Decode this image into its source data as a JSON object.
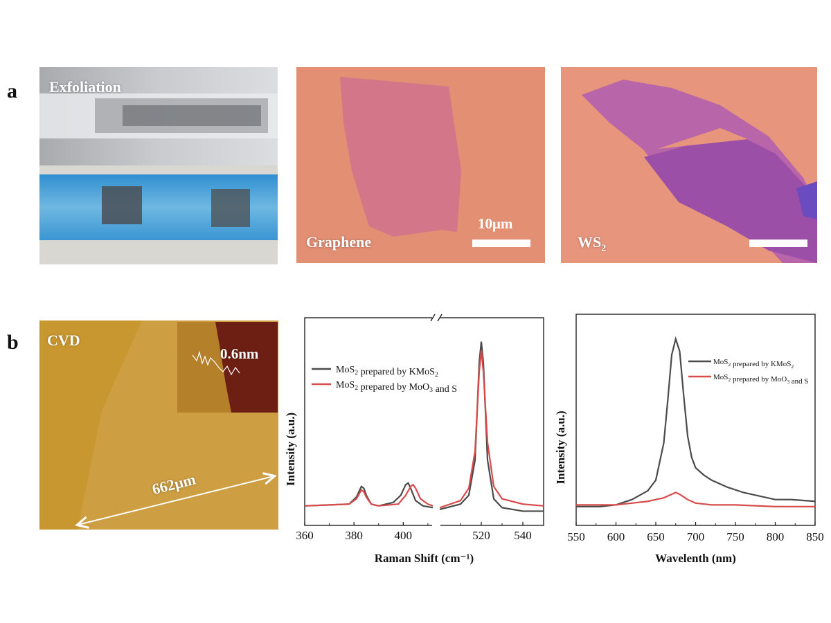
{
  "panels": {
    "a_label": "a",
    "b_label": "b",
    "exfoliation_label": "Exfoliation",
    "graphene_label": "Graphene",
    "graphene_scale": "10μm",
    "ws2_label_base": "WS",
    "ws2_label_sub": "2",
    "cvd_label": "CVD",
    "cvd_afm_height": "0.6nm",
    "cvd_length": "662μm"
  },
  "chart_data": [
    {
      "type": "line",
      "xlabel": "Raman Shift (cm⁻¹)",
      "ylabel": "Intensity (a.u.)",
      "xlim": [
        360,
        550
      ],
      "axis_break": [
        412,
        500
      ],
      "xticks": [
        360,
        380,
        400,
        520,
        540
      ],
      "ylim": [
        0,
        1
      ],
      "legend_position": "top-left",
      "series": [
        {
          "name": "MoS₂ prepared by KMoS₂",
          "color": "#4a4a4a",
          "x": [
            360,
            378,
            381,
            383,
            384,
            385,
            387,
            390,
            396,
            399,
            401,
            402,
            403,
            405,
            408,
            412,
            500,
            510,
            514,
            517,
            519,
            520,
            521,
            523,
            526,
            530,
            540,
            550
          ],
          "y": [
            0.04,
            0.05,
            0.09,
            0.15,
            0.14,
            0.1,
            0.05,
            0.04,
            0.06,
            0.1,
            0.16,
            0.17,
            0.14,
            0.07,
            0.04,
            0.03,
            0.02,
            0.05,
            0.1,
            0.3,
            0.85,
            0.97,
            0.85,
            0.3,
            0.08,
            0.03,
            0.01,
            0.01
          ]
        },
        {
          "name": "MoS₂ prepared by MoO₃ and S",
          "color": "#d94a4a",
          "x": [
            360,
            378,
            381,
            383,
            384,
            385,
            387,
            390,
            398,
            401,
            403,
            404,
            405,
            407,
            410,
            412,
            500,
            510,
            514,
            517,
            519,
            520,
            521,
            523,
            526,
            530,
            540,
            550
          ],
          "y": [
            0.04,
            0.05,
            0.08,
            0.13,
            0.12,
            0.09,
            0.05,
            0.04,
            0.05,
            0.1,
            0.15,
            0.16,
            0.14,
            0.08,
            0.05,
            0.04,
            0.03,
            0.07,
            0.14,
            0.35,
            0.8,
            0.92,
            0.8,
            0.4,
            0.15,
            0.08,
            0.05,
            0.04
          ]
        }
      ]
    },
    {
      "type": "line",
      "xlabel": "Wavelenth (nm)",
      "ylabel": "Intensity (a.u.)",
      "xlim": [
        550,
        850
      ],
      "xticks": [
        550,
        600,
        650,
        700,
        750,
        800,
        850
      ],
      "ylim": [
        0,
        1
      ],
      "legend_position": "top-right",
      "series": [
        {
          "name": "MoS₂ prepared by KMoS₂",
          "color": "#4a4a4a",
          "x": [
            550,
            580,
            600,
            620,
            640,
            650,
            660,
            665,
            670,
            675,
            680,
            685,
            690,
            695,
            700,
            710,
            720,
            740,
            760,
            780,
            800,
            820,
            850
          ],
          "y": [
            0.02,
            0.02,
            0.03,
            0.06,
            0.11,
            0.17,
            0.38,
            0.62,
            0.88,
            0.97,
            0.9,
            0.65,
            0.42,
            0.3,
            0.24,
            0.2,
            0.17,
            0.13,
            0.1,
            0.08,
            0.06,
            0.06,
            0.05
          ]
        },
        {
          "name": "MoS₂ prepared by MoO₃ and S",
          "color": "#d94a4a",
          "x": [
            550,
            580,
            600,
            620,
            640,
            650,
            660,
            670,
            675,
            680,
            690,
            700,
            720,
            750,
            800,
            850
          ],
          "y": [
            0.03,
            0.03,
            0.03,
            0.04,
            0.05,
            0.06,
            0.07,
            0.09,
            0.1,
            0.09,
            0.06,
            0.04,
            0.03,
            0.03,
            0.02,
            0.02
          ]
        }
      ]
    }
  ]
}
